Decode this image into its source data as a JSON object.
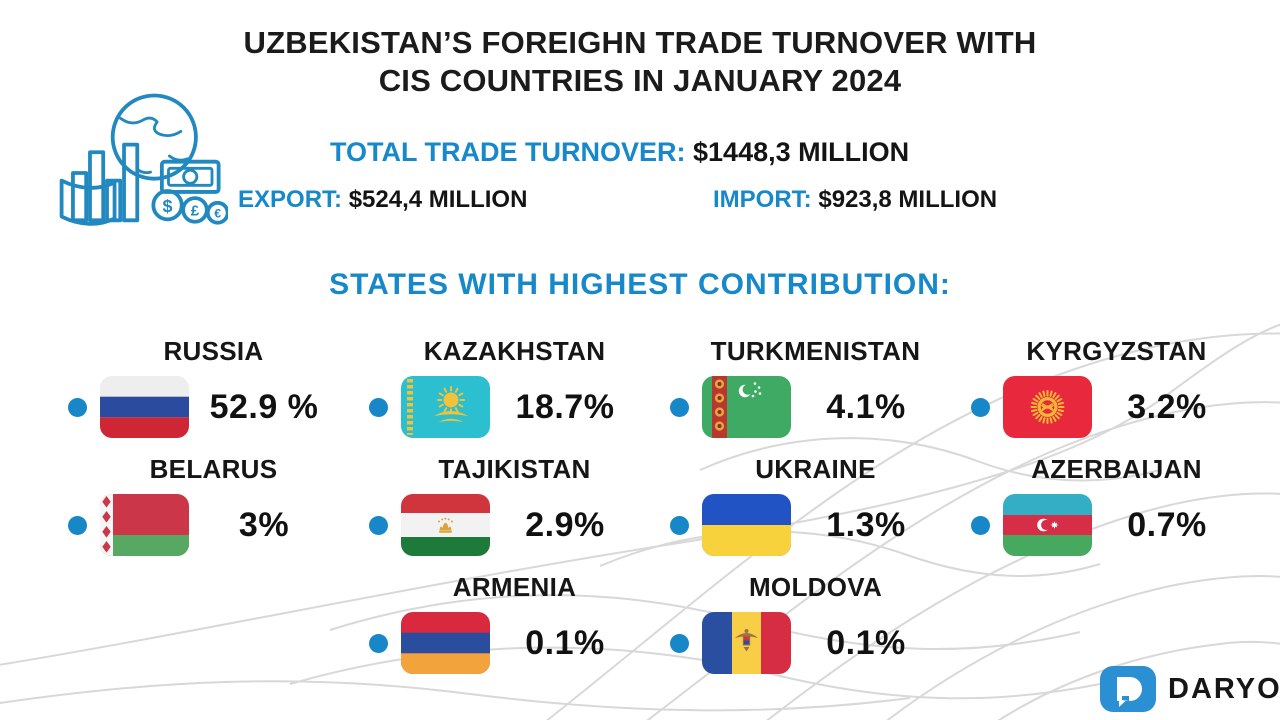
{
  "header": {
    "title_line1": "UZBEKISTAN’S FOREIGHN TRADE TURNOVER WITH",
    "title_line2": "CIS COUNTRIES IN JANUARY 2024",
    "total_label": "TOTAL TRADE TURNOVER:",
    "total_value": "$1448,3 MILLION",
    "export_label": "EXPORT:",
    "export_value": "$524,4 MILLION",
    "import_label": "IMPORT:",
    "import_value": "$923,8 MILLION"
  },
  "section": {
    "heading": "STATES WITH HIGHEST CONTRIBUTION:"
  },
  "countries": [
    {
      "name": "RUSSIA",
      "share": "52.9 %",
      "flag": "russia",
      "col": 1
    },
    {
      "name": "KAZAKHSTAN",
      "share": "18.7%",
      "flag": "kazakhstan",
      "col": 2
    },
    {
      "name": "TURKMENISTAN",
      "share": "4.1%",
      "flag": "turkmenistan",
      "col": 3
    },
    {
      "name": "KYRGYZSTAN",
      "share": "3.2%",
      "flag": "kyrgyzstan",
      "col": 4
    },
    {
      "name": "BELARUS",
      "share": "3%",
      "flag": "belarus",
      "col": 1
    },
    {
      "name": "TAJIKISTAN",
      "share": "2.9%",
      "flag": "tajikistan",
      "col": 2
    },
    {
      "name": "UKRAINE",
      "share": "1.3%",
      "flag": "ukraine",
      "col": 3
    },
    {
      "name": "AZERBAIJAN",
      "share": "0.7%",
      "flag": "azerbaijan",
      "col": 4
    },
    {
      "name": "ARMENIA",
      "share": "0.1%",
      "flag": "armenia",
      "col": 2
    },
    {
      "name": "MOLDOVA",
      "share": "0.1%",
      "flag": "moldova",
      "col": 3
    }
  ],
  "logo": {
    "text": "DARYO"
  },
  "colors": {
    "accent_blue": "#1788c9",
    "bullet_blue": "#1787c8",
    "title_black": "#1b1b1b",
    "wave_gray": "#d8d8d8",
    "logo_blue": "#2b8fd3"
  },
  "chart_data": {
    "type": "table",
    "title": "UZBEKISTAN’S FOREIGHN TRADE TURNOVER WITH CIS COUNTRIES IN JANUARY 2024",
    "subtitle": "STATES WITH HIGHEST CONTRIBUTION:",
    "annotations": {
      "total_trade_turnover": "$1448,3 MILLION",
      "export": "$524,4 MILLION",
      "import": "$923,8 MILLION"
    },
    "categories": [
      "RUSSIA",
      "KAZAKHSTAN",
      "TURKMENISTAN",
      "KYRGYZSTAN",
      "BELARUS",
      "TAJIKISTAN",
      "UKRAINE",
      "AZERBAIJAN",
      "ARMENIA",
      "MOLDOVA"
    ],
    "values": [
      52.9,
      18.7,
      4.1,
      3.2,
      3,
      2.9,
      1.3,
      0.7,
      0.1,
      0.1
    ],
    "value_labels": [
      "52.9 %",
      "18.7%",
      "4.1%",
      "3.2%",
      "3%",
      "2.9%",
      "1.3%",
      "0.7%",
      "0.1%",
      "0.1%"
    ],
    "unit": "percent of trade turnover"
  }
}
